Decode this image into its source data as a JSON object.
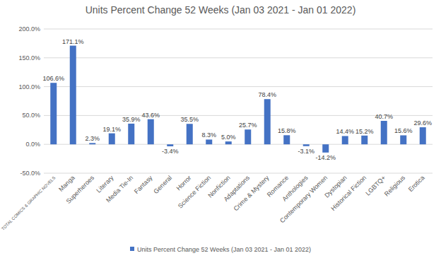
{
  "chart_data": {
    "type": "bar",
    "title": "Units Percent Change 52 Weeks (Jan 03 2021 - Jan 01 2022)",
    "categories": [
      "TOTAL COMICS & GRAPHIC NOVELS",
      "Manga",
      "Superheroes",
      "Literary",
      "Media Tie-In",
      "Fantasy",
      "General",
      "Horror",
      "Science Fiction",
      "Nonfiction",
      "Adaptations",
      "Crime & Mystery",
      "Romance",
      "Anthologies",
      "Contemporary Women",
      "Dystopian",
      "Historical Fiction",
      "LGBTQ+",
      "Religious",
      "Erotica"
    ],
    "series": [
      {
        "name": "Units Percent Change 52 Weeks (Jan 03 2021 - Jan 01 2022)",
        "color": "#4472c4",
        "values": [
          106.6,
          171.1,
          2.3,
          19.1,
          35.9,
          43.6,
          -3.4,
          35.5,
          8.3,
          5.0,
          25.7,
          78.4,
          15.8,
          -3.1,
          -14.2,
          14.4,
          15.2,
          40.7,
          15.6,
          29.6
        ],
        "value_labels": [
          "106.6%",
          "171.1%",
          "2.3%",
          "19.1%",
          "35.9%",
          "43.6%",
          "-3.4%",
          "35.5%",
          "8.3%",
          "5.0%",
          "25.7%",
          "78.4%",
          "15.8%",
          "-3.1%",
          "-14.2%",
          "14.4%",
          "15.2%",
          "40.7%",
          "15.6%",
          "29.6%"
        ]
      }
    ],
    "ylim": [
      -50,
      200
    ],
    "yticks": [
      {
        "value": -50,
        "label": "-50.0%"
      },
      {
        "value": 0,
        "label": "0.0%"
      },
      {
        "value": 50,
        "label": "50.0%"
      },
      {
        "value": 100,
        "label": "100.0%"
      },
      {
        "value": 150,
        "label": "150.0%"
      },
      {
        "value": 200,
        "label": "200.0%"
      }
    ],
    "grid": true,
    "legend": "bottom",
    "data_labels": true
  }
}
